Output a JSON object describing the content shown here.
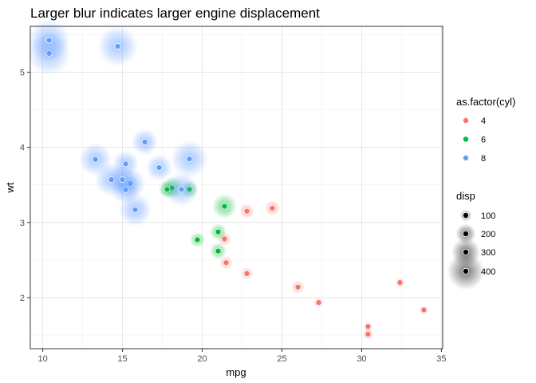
{
  "chart_data": {
    "type": "scatter",
    "title": "Larger blur indicates larger engine displacement",
    "xlabel": "mpg",
    "ylabel": "wt",
    "xlim": [
      9.22,
      35.08
    ],
    "ylim": [
      1.32,
      5.61
    ],
    "x_ticks": [
      10,
      15,
      20,
      25,
      30,
      35
    ],
    "y_ticks": [
      2,
      3,
      4,
      5
    ],
    "grid": true,
    "legend_placement": "right",
    "color_legend": {
      "title": "as.factor(cyl)",
      "entries": [
        {
          "label": "4",
          "color": "#F8766D"
        },
        {
          "label": "6",
          "color": "#00BA38"
        },
        {
          "label": "8",
          "color": "#619CFF"
        }
      ]
    },
    "size_legend": {
      "title": "disp",
      "entries": [
        {
          "label": "100",
          "value": 100
        },
        {
          "label": "200",
          "value": 200
        },
        {
          "label": "300",
          "value": 300
        },
        {
          "label": "400",
          "value": 400
        }
      ]
    },
    "series": [
      {
        "name": "4",
        "points": [
          {
            "x": 22.8,
            "y": 2.32,
            "disp": 108
          },
          {
            "x": 24.4,
            "y": 3.19,
            "disp": 146.7
          },
          {
            "x": 22.8,
            "y": 3.15,
            "disp": 140.8
          },
          {
            "x": 32.4,
            "y": 2.2,
            "disp": 78.7
          },
          {
            "x": 30.4,
            "y": 1.615,
            "disp": 75.7
          },
          {
            "x": 33.9,
            "y": 1.835,
            "disp": 71.1
          },
          {
            "x": 21.5,
            "y": 2.465,
            "disp": 120.1
          },
          {
            "x": 27.3,
            "y": 1.935,
            "disp": 79
          },
          {
            "x": 26.0,
            "y": 2.14,
            "disp": 120.3
          },
          {
            "x": 30.4,
            "y": 1.513,
            "disp": 95.1
          },
          {
            "x": 21.4,
            "y": 2.78,
            "disp": 121
          }
        ]
      },
      {
        "name": "6",
        "points": [
          {
            "x": 21.0,
            "y": 2.62,
            "disp": 160
          },
          {
            "x": 21.0,
            "y": 2.875,
            "disp": 160
          },
          {
            "x": 21.4,
            "y": 3.215,
            "disp": 258
          },
          {
            "x": 18.1,
            "y": 3.46,
            "disp": 225
          },
          {
            "x": 19.2,
            "y": 3.44,
            "disp": 167.6
          },
          {
            "x": 17.8,
            "y": 3.44,
            "disp": 167.6
          },
          {
            "x": 19.7,
            "y": 2.77,
            "disp": 145
          }
        ]
      },
      {
        "name": "8",
        "points": [
          {
            "x": 18.7,
            "y": 3.44,
            "disp": 360
          },
          {
            "x": 14.3,
            "y": 3.57,
            "disp": 360
          },
          {
            "x": 16.4,
            "y": 4.07,
            "disp": 275.8
          },
          {
            "x": 17.3,
            "y": 3.73,
            "disp": 275.8
          },
          {
            "x": 15.2,
            "y": 3.78,
            "disp": 275.8
          },
          {
            "x": 10.4,
            "y": 5.25,
            "disp": 472
          },
          {
            "x": 10.4,
            "y": 5.424,
            "disp": 460
          },
          {
            "x": 14.7,
            "y": 5.345,
            "disp": 440
          },
          {
            "x": 15.5,
            "y": 3.52,
            "disp": 318
          },
          {
            "x": 15.2,
            "y": 3.435,
            "disp": 304
          },
          {
            "x": 13.3,
            "y": 3.84,
            "disp": 350
          },
          {
            "x": 19.2,
            "y": 3.845,
            "disp": 400
          },
          {
            "x": 15.8,
            "y": 3.17,
            "disp": 351
          },
          {
            "x": 15.0,
            "y": 3.57,
            "disp": 301
          }
        ]
      }
    ]
  }
}
